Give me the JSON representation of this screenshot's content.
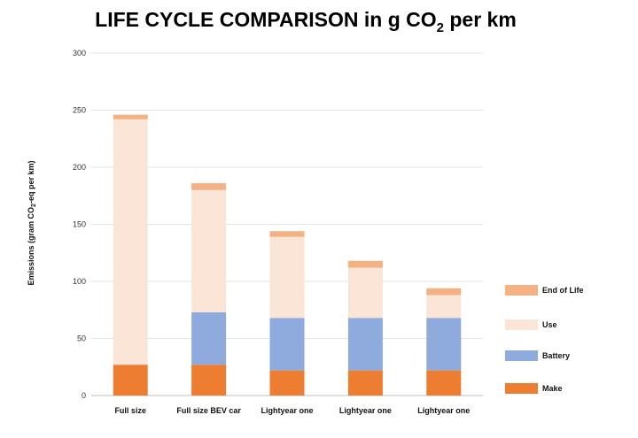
{
  "chart_data": {
    "type": "bar",
    "stacked": true,
    "title": "LIFE CYCLE COMPARISON in g CO",
    "title_subscript": "2",
    "title_suffix": " per km",
    "ylabel": "Emissions (gram CO",
    "ylabel_subscript": "2",
    "ylabel_suffix": "-eq per km)",
    "xlabel": "",
    "ylim": [
      0,
      300
    ],
    "yticks": [
      0,
      50,
      100,
      150,
      200,
      250,
      300
    ],
    "grid": true,
    "legend_position": "right",
    "categories": [
      "Full size",
      "Full size BEV car",
      "Lightyear one",
      "Lightyear one",
      "Lightyear one"
    ],
    "series": [
      {
        "name": "Make",
        "color": "#ed7d31",
        "values": [
          27,
          27,
          22,
          22,
          22
        ]
      },
      {
        "name": "Battery",
        "color": "#8faadc",
        "values": [
          0,
          46,
          46,
          46,
          46
        ]
      },
      {
        "name": "Use",
        "color": "#fbe5d6",
        "values": [
          215,
          107,
          71,
          44,
          20
        ]
      },
      {
        "name": "End of Life",
        "color": "#f4b183",
        "values": [
          4,
          6,
          5,
          6,
          6
        ]
      }
    ],
    "legend_order": [
      "End of Life",
      "Use",
      "Battery",
      "Make"
    ]
  }
}
